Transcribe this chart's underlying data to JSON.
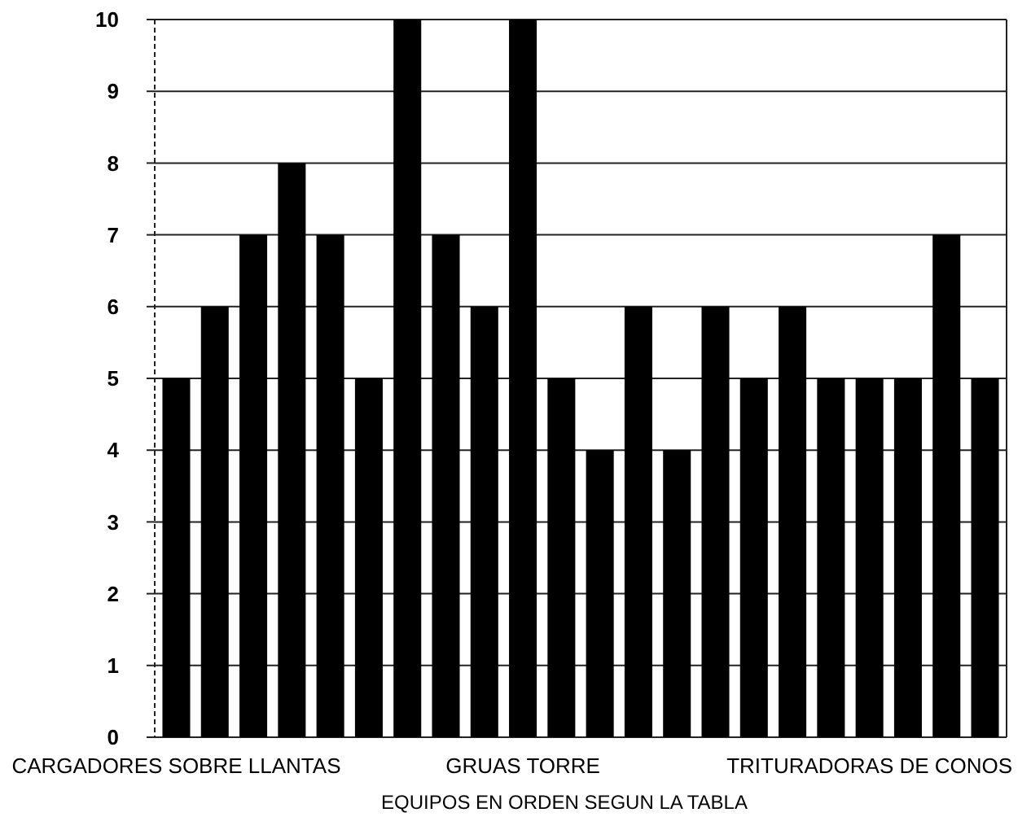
{
  "chart_data": {
    "type": "bar",
    "xlabel": "EQUIPOS EN ORDEN SEGUN LA TABLA",
    "categories": [
      "CARGADORES SOBRE LLANTAS",
      null,
      null,
      null,
      null,
      null,
      null,
      null,
      null,
      "GRUAS TORRE",
      null,
      null,
      null,
      null,
      null,
      null,
      null,
      null,
      "TRITURADORAS DE CONOS",
      null,
      null,
      null
    ],
    "values": [
      5,
      6,
      7,
      8,
      7,
      5,
      10,
      7,
      6,
      10,
      5,
      4,
      6,
      4,
      6,
      5,
      6,
      5,
      5,
      5,
      7,
      5
    ],
    "color": "#000000",
    "ylim": [
      0,
      10
    ],
    "yticks": [
      0,
      1,
      2,
      3,
      4,
      5,
      6,
      7,
      8,
      9,
      10
    ],
    "grid": "y"
  }
}
